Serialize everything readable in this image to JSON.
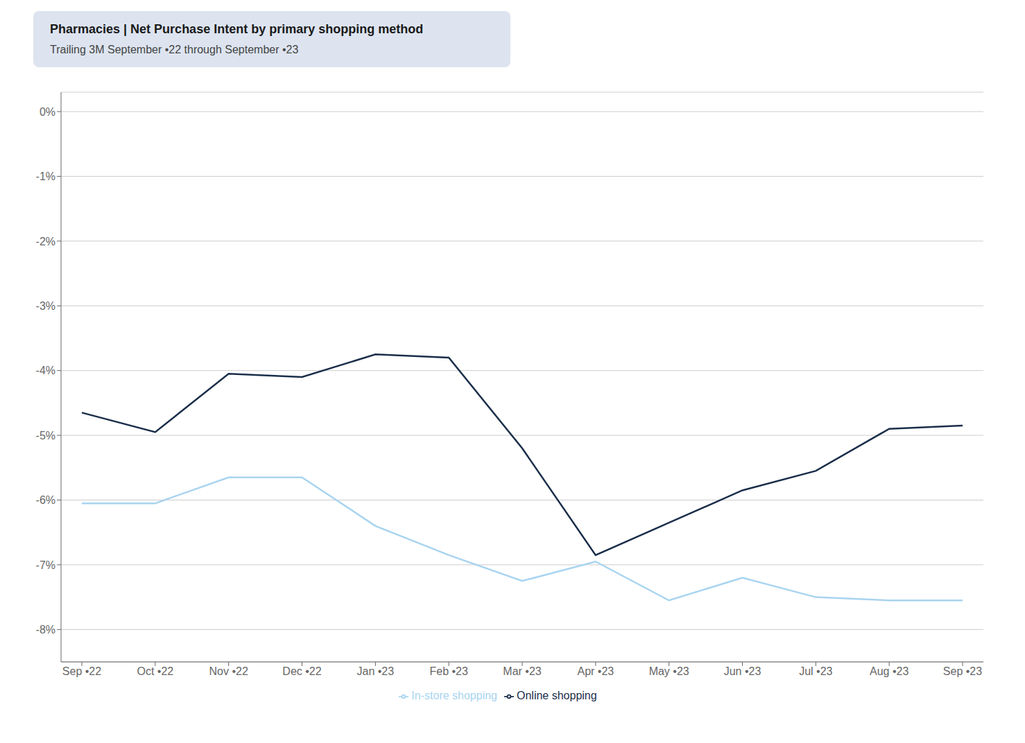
{
  "chart_data": {
    "type": "line",
    "title": "Pharmacies | Net Purchase Intent by primary shopping method",
    "subtitle": "Trailing 3M September •22 through September •23",
    "categories": [
      "Sep •22",
      "Oct •22",
      "Nov •22",
      "Dec •22",
      "Jan •23",
      "Feb •23",
      "Mar •23",
      "Apr •23",
      "May •23",
      "Jun •23",
      "Jul •23",
      "Aug •23",
      "Sep •23"
    ],
    "series": [
      {
        "name": "In-store shopping",
        "color": "#a8d4f0",
        "values": [
          -6.05,
          -6.05,
          -5.65,
          -5.65,
          -6.4,
          -6.85,
          -7.25,
          -6.95,
          -7.55,
          -7.2,
          -7.5,
          -7.55,
          -7.55
        ]
      },
      {
        "name": "Online shopping",
        "color": "#1a2e4a",
        "values": [
          -4.65,
          -4.95,
          -4.05,
          -4.1,
          -3.75,
          -3.8,
          -5.2,
          -6.85,
          -6.35,
          -5.85,
          -5.55,
          -4.9,
          -4.85
        ]
      }
    ],
    "ylim": [
      -8.5,
      0.3
    ],
    "yticks": [
      {
        "value": 0,
        "label": "0%"
      },
      {
        "value": -1,
        "label": "-1%"
      },
      {
        "value": -2,
        "label": "-2%"
      },
      {
        "value": -3,
        "label": "-3%"
      },
      {
        "value": -4,
        "label": "-4%"
      },
      {
        "value": -5,
        "label": "-5%"
      },
      {
        "value": -6,
        "label": "-6%"
      },
      {
        "value": -7,
        "label": "-7%"
      },
      {
        "value": -8,
        "label": "-8%"
      }
    ],
    "grid": true,
    "legend": "bottom"
  }
}
